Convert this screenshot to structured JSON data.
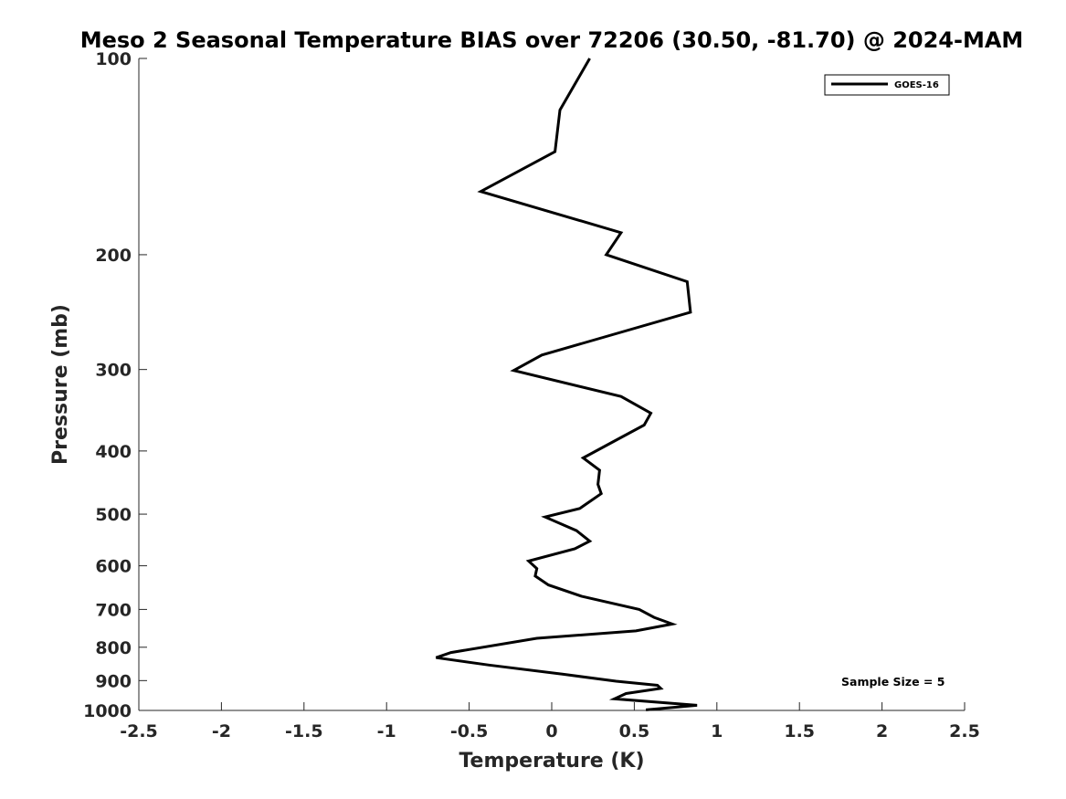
{
  "chart_data": {
    "type": "line",
    "title": "Meso 2 Seasonal Temperature BIAS over 72206 (30.50, -81.70) @ 2024-MAM",
    "xlabel": "Temperature (K)",
    "ylabel": "Pressure (mb)",
    "xlim": [
      -2.5,
      2.5
    ],
    "ylim": [
      100,
      1000
    ],
    "y_scale": "log",
    "y_reversed": true,
    "grid": false,
    "legend_position": "top-right",
    "x_ticks": [
      -2.5,
      -2,
      -1.5,
      -1,
      -0.5,
      0,
      0.5,
      1,
      1.5,
      2,
      2.5
    ],
    "x_tick_labels": [
      "-2.5",
      "-2",
      "-1.5",
      "-1",
      "-0.5",
      "0",
      "0.5",
      "1",
      "1.5",
      "2",
      "2.5"
    ],
    "y_ticks": [
      100,
      200,
      300,
      400,
      500,
      600,
      700,
      800,
      900,
      1000
    ],
    "y_tick_labels": [
      "100",
      "200",
      "300",
      "400",
      "500",
      "600",
      "700",
      "800",
      "900",
      "1000"
    ],
    "annotation": "Sample Size = 5",
    "line_color": "#000000",
    "series": [
      {
        "name": "GOES-16",
        "points": [
          [
            0.23,
            100
          ],
          [
            0.05,
            120
          ],
          [
            0.02,
            139
          ],
          [
            -0.43,
            160
          ],
          [
            0.42,
            185
          ],
          [
            0.33,
            200
          ],
          [
            0.82,
            220
          ],
          [
            0.84,
            245
          ],
          [
            -0.06,
            285
          ],
          [
            -0.23,
            301
          ],
          [
            0.42,
            330
          ],
          [
            0.6,
            350
          ],
          [
            0.56,
            365
          ],
          [
            0.39,
            385
          ],
          [
            0.19,
            410
          ],
          [
            0.29,
            428
          ],
          [
            0.28,
            450
          ],
          [
            0.3,
            465
          ],
          [
            0.17,
            490
          ],
          [
            -0.04,
            505
          ],
          [
            0.15,
            530
          ],
          [
            0.23,
            550
          ],
          [
            0.14,
            565
          ],
          [
            -0.14,
            590
          ],
          [
            -0.09,
            606
          ],
          [
            -0.1,
            622
          ],
          [
            -0.02,
            642
          ],
          [
            0.18,
            668
          ],
          [
            0.53,
            700
          ],
          [
            0.62,
            720
          ],
          [
            0.73,
            737
          ],
          [
            0.51,
            755
          ],
          [
            -0.09,
            775
          ],
          [
            -0.61,
            815
          ],
          [
            -0.7,
            830
          ],
          [
            -0.38,
            852
          ],
          [
            0.07,
            880
          ],
          [
            0.39,
            902
          ],
          [
            0.64,
            915
          ],
          [
            0.66,
            925
          ],
          [
            0.45,
            942
          ],
          [
            0.38,
            960
          ],
          [
            0.88,
            982
          ],
          [
            0.57,
            998
          ]
        ]
      }
    ]
  }
}
